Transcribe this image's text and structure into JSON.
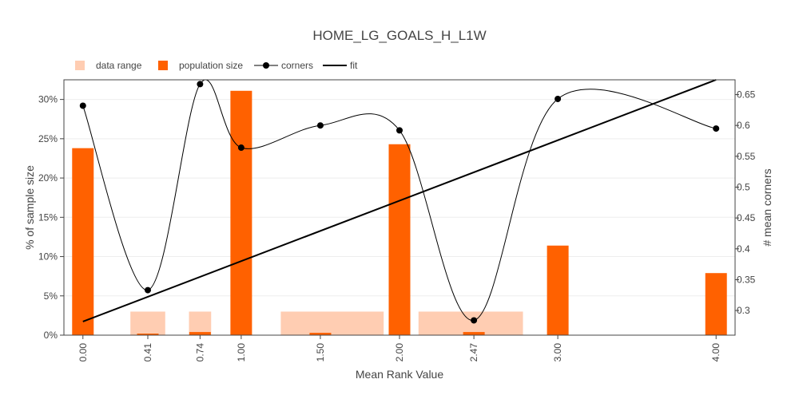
{
  "chart_data": {
    "type": "bar",
    "title": "HOME_LG_GOALS_H_L1W",
    "xlabel": "Mean Rank Value",
    "ylabel_left": "% of sample size",
    "ylabel_right": "# mean corners",
    "x_range": [
      -0.12,
      4.12
    ],
    "ylim_left": [
      0,
      0.325
    ],
    "ylim_right": [
      0.26,
      0.674
    ],
    "x_ticks": [
      {
        "value": 0.0,
        "label": "0.00"
      },
      {
        "value": 0.41,
        "label": "0.41"
      },
      {
        "value": 0.74,
        "label": "0.74"
      },
      {
        "value": 1.0,
        "label": "1.00"
      },
      {
        "value": 1.5,
        "label": "1.50"
      },
      {
        "value": 2.0,
        "label": "2.00"
      },
      {
        "value": 2.47,
        "label": "2.47"
      },
      {
        "value": 3.0,
        "label": "3.00"
      },
      {
        "value": 4.0,
        "label": "4.00"
      }
    ],
    "y_left_ticks": [
      {
        "value": 0.0,
        "label": "0%"
      },
      {
        "value": 0.05,
        "label": "5%"
      },
      {
        "value": 0.1,
        "label": "10%"
      },
      {
        "value": 0.15,
        "label": "15%"
      },
      {
        "value": 0.2,
        "label": "20%"
      },
      {
        "value": 0.25,
        "label": "25%"
      },
      {
        "value": 0.3,
        "label": "30%"
      }
    ],
    "y_right_ticks": [
      {
        "value": 0.3,
        "label": "0.3"
      },
      {
        "value": 0.35,
        "label": "0.35"
      },
      {
        "value": 0.4,
        "label": "0.4"
      },
      {
        "value": 0.45,
        "label": "0.45"
      },
      {
        "value": 0.5,
        "label": "0.5"
      },
      {
        "value": 0.55,
        "label": "0.55"
      },
      {
        "value": 0.6,
        "label": "0.6"
      },
      {
        "value": 0.65,
        "label": "0.65"
      }
    ],
    "legend": {
      "placement": "top-left",
      "items": [
        {
          "label": "data range",
          "kind": "bar",
          "color": "#ffcdb2"
        },
        {
          "label": "population size",
          "kind": "bar",
          "color": "#ff6100"
        },
        {
          "label": "corners",
          "kind": "line-marker",
          "color": "#000000"
        },
        {
          "label": "fit",
          "kind": "line",
          "color": "#000000"
        }
      ]
    },
    "series": [
      {
        "name": "data range",
        "kind": "range-bar",
        "color": "#ffcdb2",
        "values": [
          {
            "x0": 0.3,
            "x1": 0.52,
            "y": 0.03
          },
          {
            "x0": 0.67,
            "x1": 0.81,
            "y": 0.03
          },
          {
            "x0": 1.25,
            "x1": 1.9,
            "y": 0.03
          },
          {
            "x0": 2.12,
            "x1": 2.78,
            "y": 0.03
          }
        ]
      },
      {
        "name": "population size",
        "kind": "bar",
        "color": "#ff6100",
        "values": [
          {
            "x": 0.0,
            "y": 0.238
          },
          {
            "x": 0.41,
            "y": 0.002
          },
          {
            "x": 0.74,
            "y": 0.004
          },
          {
            "x": 1.0,
            "y": 0.311
          },
          {
            "x": 1.5,
            "y": 0.003
          },
          {
            "x": 2.0,
            "y": 0.243
          },
          {
            "x": 2.47,
            "y": 0.004
          },
          {
            "x": 3.0,
            "y": 0.114
          },
          {
            "x": 4.0,
            "y": 0.079
          }
        ]
      },
      {
        "name": "corners",
        "kind": "smooth-line-markers",
        "axis": "right",
        "color": "#000000",
        "values": [
          {
            "x": 0.0,
            "y": 0.632
          },
          {
            "x": 0.41,
            "y": 0.333
          },
          {
            "x": 0.74,
            "y": 0.667
          },
          {
            "x": 1.0,
            "y": 0.564
          },
          {
            "x": 1.5,
            "y": 0.6
          },
          {
            "x": 2.0,
            "y": 0.592
          },
          {
            "x": 2.47,
            "y": 0.284
          },
          {
            "x": 3.0,
            "y": 0.643
          },
          {
            "x": 4.0,
            "y": 0.595
          }
        ]
      },
      {
        "name": "fit",
        "kind": "line",
        "axis": "right",
        "color": "#000000",
        "values": [
          {
            "x": 0.0,
            "y": 0.282
          },
          {
            "x": 4.0,
            "y": 0.674
          }
        ]
      }
    ]
  }
}
